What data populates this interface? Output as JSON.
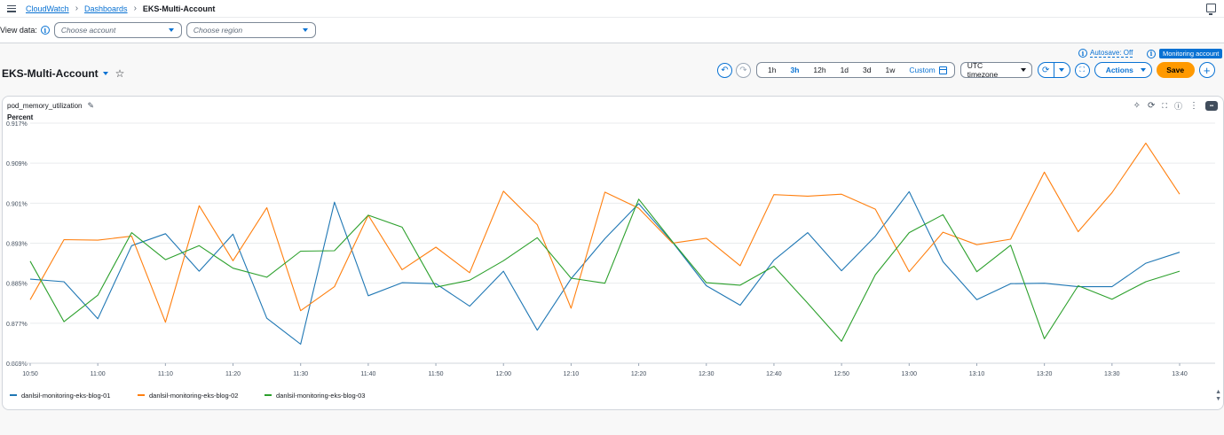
{
  "breadcrumb": {
    "root": "CloudWatch",
    "parent": "Dashboards",
    "current": "EKS-Multi-Account"
  },
  "view_data": {
    "label": "View data:",
    "account_placeholder": "Choose account",
    "region_placeholder": "Choose region"
  },
  "dashboard": {
    "title": "EKS-Multi-Account"
  },
  "status": {
    "autosave": "Autosave: Off",
    "monitoring": "Monitoring account"
  },
  "time_ranges": [
    "1h",
    "3h",
    "12h",
    "1d",
    "3d",
    "1w"
  ],
  "time_range_active": "3h",
  "time_custom": "Custom",
  "timezone": "UTC timezone",
  "actions_label": "Actions",
  "save_label": "Save",
  "icons": {
    "menu": "hamburger-icon",
    "undo": "undo-icon",
    "redo": "redo-icon",
    "refresh": "refresh-icon",
    "fullscreen": "fullscreen-icon",
    "add": "plus-icon",
    "info": "info-icon",
    "edit": "pencil-icon",
    "favorite": "star-icon",
    "insights": "sparkle-icon",
    "expand": "expand-icon",
    "more": "more-vert-icon",
    "feedback": "chat-icon",
    "calendar": "calendar-icon",
    "external": "external-window-icon"
  },
  "colors": {
    "accent": "#0972d3",
    "save": "#ff9900",
    "series_1": "#1f77b4",
    "series_2": "#ff7f0e",
    "series_3": "#2ca02c"
  },
  "widget": {
    "title": "pod_memory_utilization"
  },
  "chart_data": {
    "type": "line",
    "title": "pod_memory_utilization",
    "ylabel": "Percent",
    "ylim": [
      0.869,
      0.917
    ],
    "y_ticks": [
      "0.917%",
      "0.909%",
      "0.901%",
      "0.893%",
      "0.885%",
      "0.877%",
      "0.869%"
    ],
    "x_ticks": [
      "10:50",
      "11:00",
      "11:10",
      "11:20",
      "11:30",
      "11:40",
      "11:50",
      "12:00",
      "12:10",
      "12:20",
      "12:30",
      "12:40",
      "12:50",
      "13:00",
      "13:10",
      "13:20",
      "13:30",
      "13:40"
    ],
    "grid": "horizontal",
    "legend_position": "bottom-left",
    "x": [
      "10:50",
      "10:55",
      "11:00",
      "11:05",
      "11:10",
      "11:15",
      "11:20",
      "11:25",
      "11:30",
      "11:35",
      "11:40",
      "11:45",
      "11:50",
      "11:55",
      "12:00",
      "12:05",
      "12:10",
      "12:15",
      "12:20",
      "12:25",
      "12:30",
      "12:35",
      "12:40",
      "12:45",
      "12:50",
      "12:55",
      "13:00",
      "13:05",
      "13:10",
      "13:15",
      "13:20",
      "13:25",
      "13:30",
      "13:35",
      "13:40"
    ],
    "series": [
      {
        "name": "danlsil-monitoring-eks-blog-01",
        "values": [
          0.8858,
          0.8853,
          0.8779,
          0.8925,
          0.8949,
          0.8874,
          0.8948,
          0.878,
          0.8728,
          0.9012,
          0.8825,
          0.8851,
          0.8849,
          0.8804,
          0.8874,
          0.8756,
          0.8859,
          0.8939,
          0.9009,
          0.8932,
          0.8845,
          0.8806,
          0.8896,
          0.8951,
          0.8875,
          0.8944,
          0.9033,
          0.8893,
          0.8817,
          0.8849,
          0.885,
          0.8843,
          0.8843,
          0.889,
          0.8912
        ]
      },
      {
        "name": "danlsil-monitoring-eks-blog-02",
        "values": [
          0.8817,
          0.8937,
          0.8936,
          0.8944,
          0.8772,
          0.9005,
          0.8895,
          0.9001,
          0.8795,
          0.8843,
          0.8986,
          0.8877,
          0.8922,
          0.8871,
          0.9034,
          0.8967,
          0.88,
          0.9032,
          0.9,
          0.893,
          0.894,
          0.8885,
          0.9027,
          0.9024,
          0.9028,
          0.8998,
          0.8873,
          0.8952,
          0.8927,
          0.8938,
          0.9072,
          0.8953,
          0.9031,
          0.913,
          0.9028
        ]
      },
      {
        "name": "danlsil-monitoring-eks-blog-03",
        "values": [
          0.8894,
          0.8773,
          0.8826,
          0.8951,
          0.8897,
          0.8925,
          0.888,
          0.8862,
          0.8914,
          0.8915,
          0.8986,
          0.8962,
          0.8842,
          0.8856,
          0.8895,
          0.8941,
          0.886,
          0.885,
          0.9018,
          0.8933,
          0.8851,
          0.8846,
          0.8884,
          0.881,
          0.8734,
          0.8867,
          0.8951,
          0.8987,
          0.8873,
          0.8926,
          0.8739,
          0.8845,
          0.8818,
          0.8853,
          0.8874
        ]
      }
    ]
  }
}
